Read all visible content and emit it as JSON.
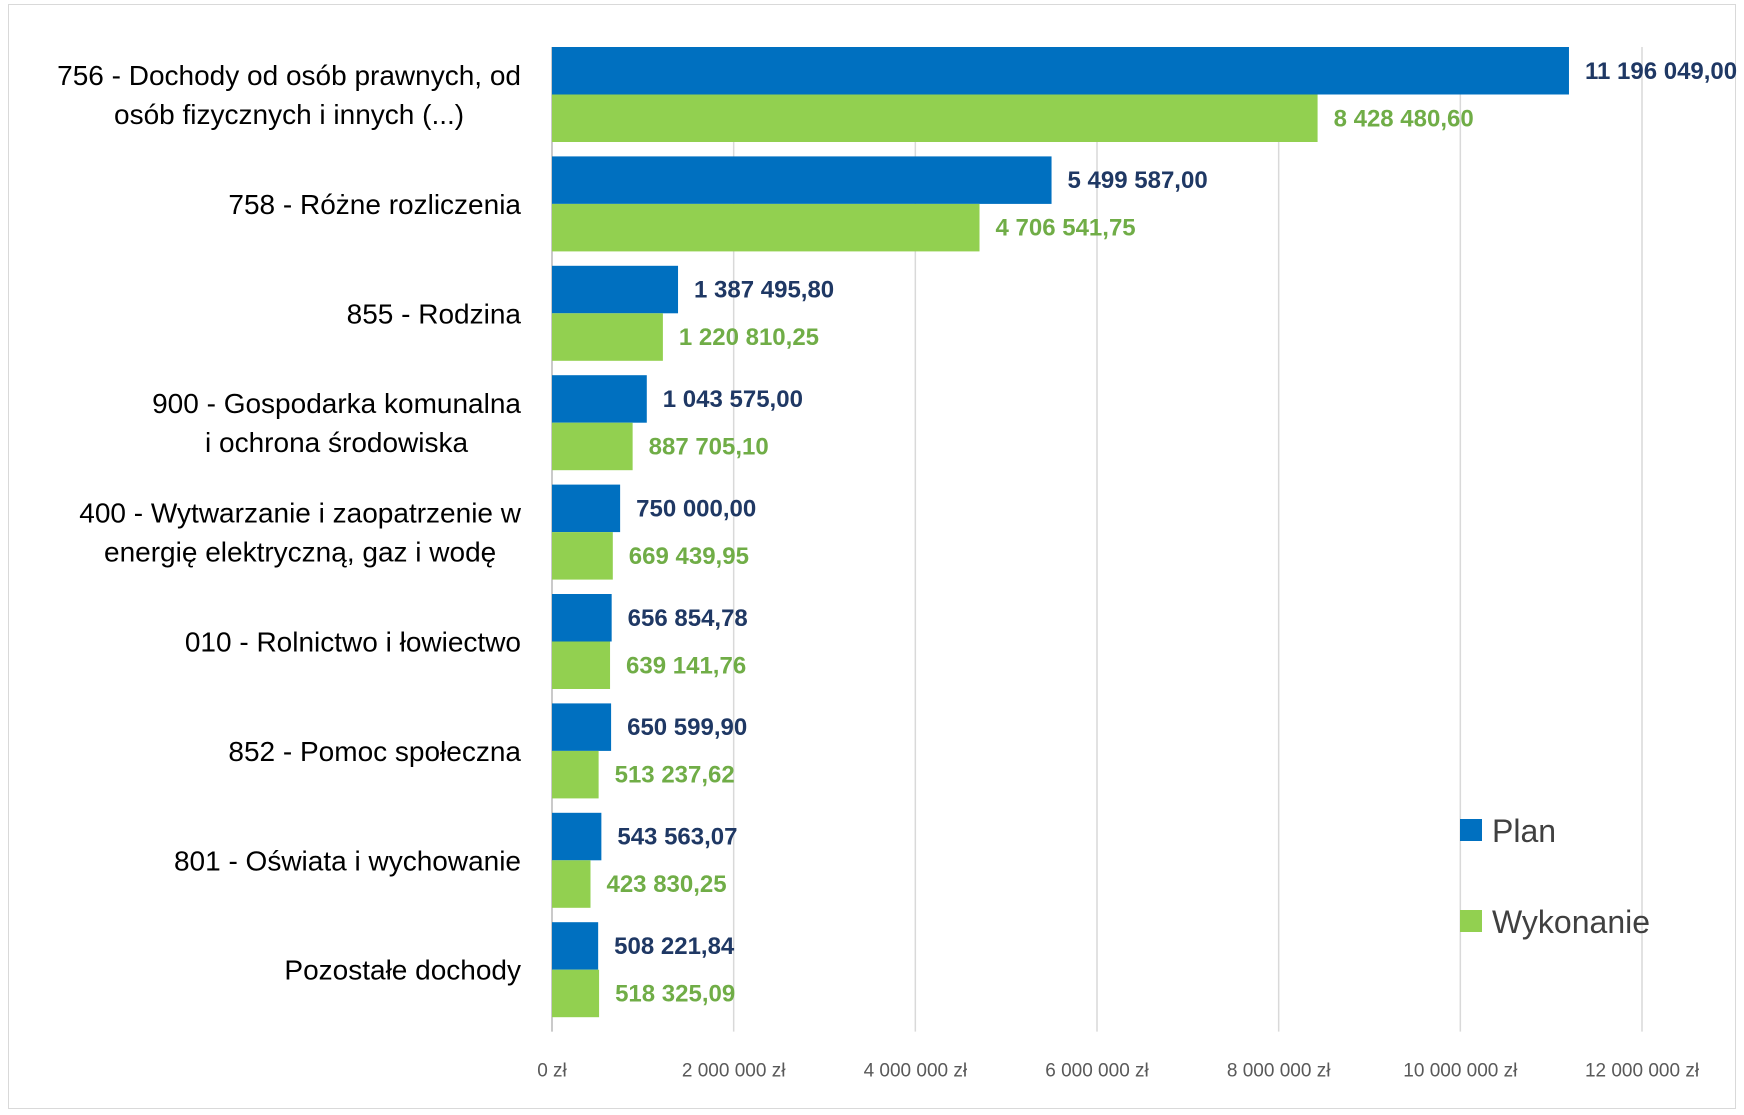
{
  "chart_data": {
    "type": "bar",
    "orientation": "horizontal",
    "title": "",
    "xlabel": "",
    "ylabel": "",
    "categories": [
      [
        "756 - Dochody od osób prawnych, od",
        "osób fizycznych i innych (...)"
      ],
      [
        "758 - Różne rozliczenia"
      ],
      [
        "855 - Rodzina"
      ],
      [
        "900 - Gospodarka komunalna",
        "i ochrona środowiska"
      ],
      [
        "400 - Wytwarzanie i zaopatrzenie w",
        "energię elektryczną, gaz i wodę"
      ],
      [
        "010 - Rolnictwo i łowiectwo"
      ],
      [
        "852 - Pomoc społeczna"
      ],
      [
        "801 - Oświata i wychowanie"
      ],
      [
        "Pozostałe dochody"
      ]
    ],
    "series": [
      {
        "name": "Plan",
        "color": "#0070C0",
        "label_color": "#1F3864",
        "values": [
          11196049.0,
          5499587.0,
          1387495.8,
          1043575.0,
          750000.0,
          656854.78,
          650599.9,
          543563.07,
          508221.84
        ],
        "labels": [
          "11 196 049,00",
          "5 499 587,00",
          "1 387 495,80",
          "1 043 575,00",
          "750 000,00",
          "656 854,78",
          "650 599,90",
          "543 563,07",
          "508 221,84"
        ]
      },
      {
        "name": "Wykonanie",
        "color": "#92D050",
        "label_color": "#70AD47",
        "values": [
          8428480.6,
          4706541.75,
          1220810.25,
          887705.1,
          669439.95,
          639141.76,
          513237.62,
          423830.25,
          518325.09
        ],
        "labels": [
          "8 428 480,60",
          "4 706 541,75",
          "1 220 810,25",
          "887 705,10",
          "669 439,95",
          "639 141,76",
          "513 237,62",
          "423 830,25",
          "518 325,09"
        ]
      }
    ],
    "xlim": [
      0,
      12000000
    ],
    "xticks": [
      0,
      2000000,
      4000000,
      6000000,
      8000000,
      10000000,
      12000000
    ],
    "xtick_labels": [
      "0 zł",
      "2 000 000 zł",
      "4 000 000 zł",
      "6 000 000 zł",
      "8 000 000 zł",
      "10 000 000 zł",
      "12 000 000 zł"
    ],
    "grid": "vertical",
    "gridline_color": "#d9d9d9",
    "legend": "bottom-right"
  }
}
